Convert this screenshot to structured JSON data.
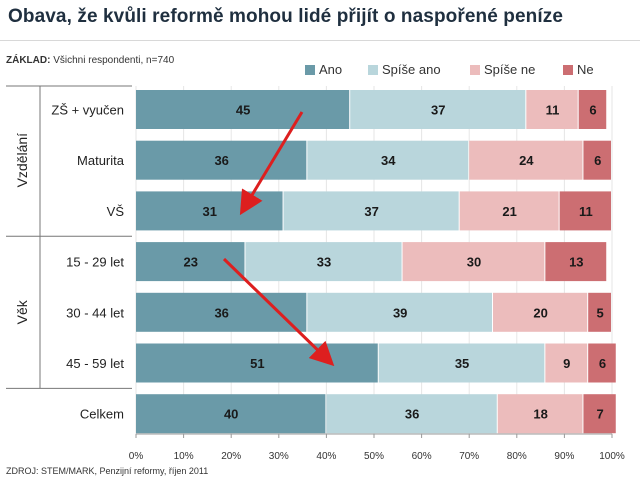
{
  "chart_data": {
    "type": "bar",
    "orientation": "horizontal",
    "stacked": true,
    "title": "Obava, že kvůli reformě mohou lidé přijít o naspořené peníze",
    "base_label": "ZÁKLAD:",
    "base_text": "Všichni respondenti, n=740",
    "source": "ZDROJ: STEM/MARK, Penzijní reformy, říjen 2011",
    "xlim": [
      0,
      100
    ],
    "x_ticks": [
      "0%",
      "10%",
      "20%",
      "30%",
      "40%",
      "50%",
      "60%",
      "70%",
      "80%",
      "90%",
      "100%"
    ],
    "groups": [
      {
        "label": "Vzdělání",
        "start": 0,
        "end": 2
      },
      {
        "label": "Věk",
        "start": 3,
        "end": 5
      }
    ],
    "categories": [
      "ZŠ + vyučen",
      "Maturita",
      "VŠ",
      "15 - 29 let",
      "30 - 44 let",
      "45 - 59 let",
      "Celkem"
    ],
    "series": [
      {
        "name": "Ano",
        "color": "#6a9aa8",
        "values": [
          45,
          36,
          31,
          23,
          36,
          51,
          40
        ]
      },
      {
        "name": "Spíše ano",
        "color": "#b9d6dc",
        "values": [
          37,
          34,
          37,
          33,
          39,
          35,
          36
        ]
      },
      {
        "name": "Spíše ne",
        "color": "#ecbcbc",
        "values": [
          11,
          24,
          21,
          30,
          20,
          9,
          18
        ]
      },
      {
        "name": "Ne",
        "color": "#cc6e72",
        "values": [
          6,
          6,
          11,
          13,
          5,
          6,
          7
        ]
      }
    ],
    "arrow_color": "#dd1f1f"
  }
}
